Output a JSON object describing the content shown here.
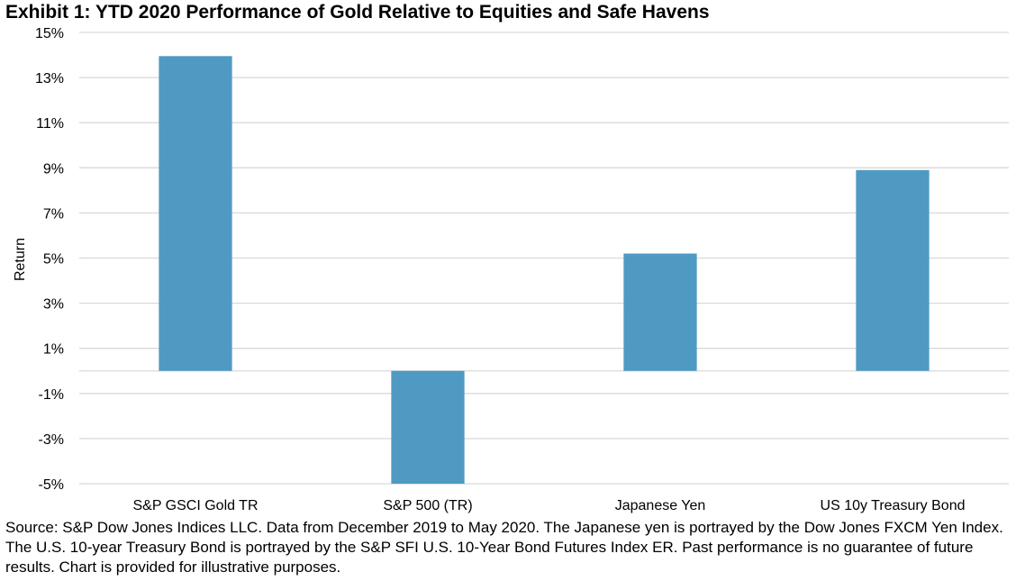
{
  "title": "Exhibit 1: YTD 2020 Performance of Gold Relative to Equities and Safe Havens",
  "source_note": "Source: S&P Dow Jones Indices LLC. Data from December 2019 to May 2020. The Japanese yen is portrayed by the Dow Jones FXCM Yen Index. The U.S. 10-year Treasury Bond is portrayed by the S&P SFI U.S. 10-Year Bond Futures Index ER. Past performance is no guarantee of future results. Chart is provided for illustrative purposes.",
  "chart_data": {
    "type": "bar",
    "title": "Exhibit 1: YTD 2020 Performance of Gold Relative to Equities and Safe Havens",
    "xlabel": "",
    "ylabel": "Return",
    "categories": [
      "S&P GSCI Gold TR",
      "S&P 500 (TR)",
      "Japanese Yen",
      "US 10y Treasury Bond"
    ],
    "values": [
      13.95,
      -5.0,
      5.2,
      8.9
    ],
    "ylim": [
      -5,
      15
    ],
    "yticks": [
      -5,
      -3,
      -1,
      1,
      3,
      5,
      7,
      9,
      11,
      13,
      15
    ],
    "ytick_labels": [
      "-5%",
      "-3%",
      "-1%",
      "1%",
      "3%",
      "5%",
      "7%",
      "9%",
      "11%",
      "13%",
      "15%"
    ],
    "grid": true,
    "bar_color": "#4F9AC3",
    "grid_color": "#D9D9D9"
  }
}
